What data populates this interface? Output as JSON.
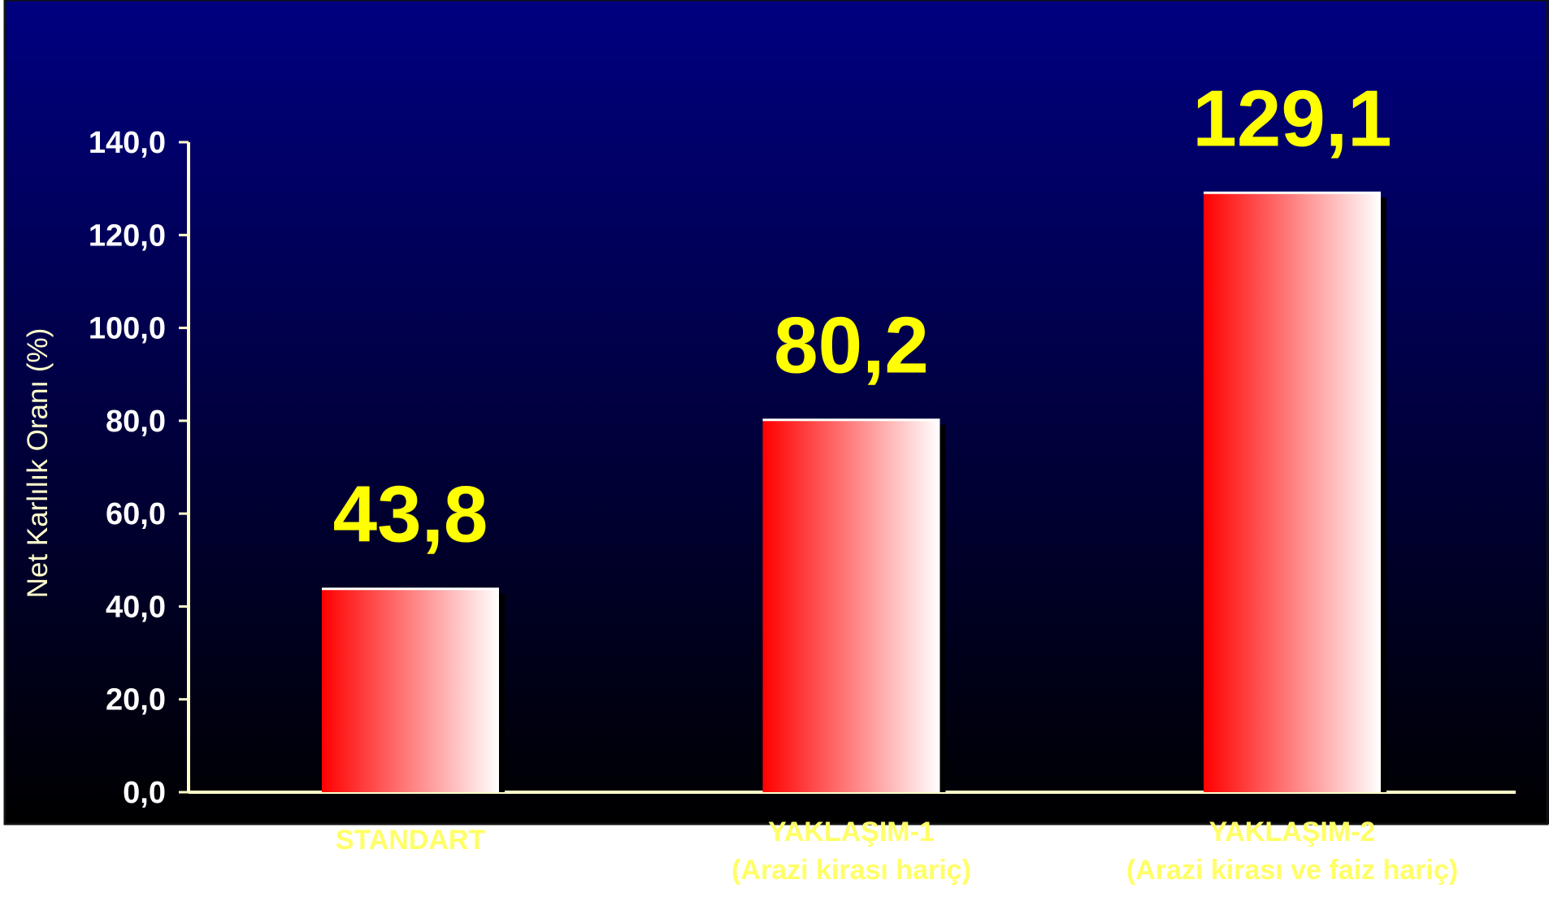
{
  "colors": {
    "background_top": "#000080",
    "background_bottom": "#000000",
    "axis": "#FFFFCC",
    "bar_dark": "#FF0000",
    "bar_light": "#FFFFFF",
    "value_label": "#FFFF00",
    "category_label": "#FFFF66"
  },
  "chart_data": {
    "type": "bar",
    "title": "",
    "xlabel": "",
    "ylabel": "Net Karlılık Oranı (%)",
    "ylim": [
      0,
      140
    ],
    "yticks": [
      {
        "value": 0,
        "label": "0,0"
      },
      {
        "value": 20,
        "label": "20,0"
      },
      {
        "value": 40,
        "label": "40,0"
      },
      {
        "value": 60,
        "label": "60,0"
      },
      {
        "value": 80,
        "label": "80,0"
      },
      {
        "value": 100,
        "label": "100,0"
      },
      {
        "value": 120,
        "label": "120,0"
      },
      {
        "value": 140,
        "label": "140,0"
      }
    ],
    "categories": [
      {
        "lines": [
          "STANDART"
        ]
      },
      {
        "lines": [
          "YAKLAŞIM-1",
          "(Arazi kirası hariç)"
        ]
      },
      {
        "lines": [
          "YAKLAŞIM-2",
          "(Arazi kirası ve faiz hariç)"
        ]
      }
    ],
    "values": [
      43.8,
      80.2,
      129.1
    ],
    "value_labels": [
      "43,8",
      "80,2",
      "129,1"
    ],
    "grid": false,
    "legend": "none"
  }
}
